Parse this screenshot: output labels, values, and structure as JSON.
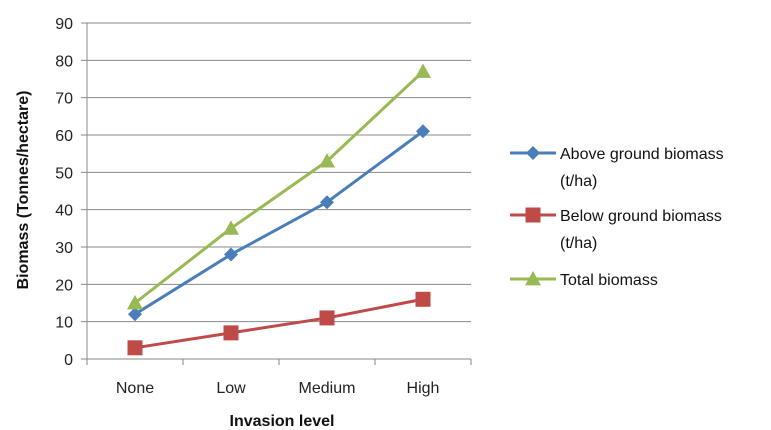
{
  "chart_data": {
    "type": "line",
    "title": "",
    "xlabel": "Invasion level",
    "ylabel": "Biomass (Tonnes/hectare)",
    "categories": [
      "None",
      "Low",
      "Medium",
      "High"
    ],
    "ylim": [
      0,
      90
    ],
    "yticks": [
      0,
      10,
      20,
      30,
      40,
      50,
      60,
      70,
      80,
      90
    ],
    "grid": true,
    "legend_position": "right",
    "series": [
      {
        "name": "Above ground biomass (t/ha)",
        "name_lines": [
          "Above ground biomass",
          "(t/ha)"
        ],
        "values": [
          12,
          28,
          42,
          61
        ],
        "color": "#4a7ebb",
        "marker": "diamond"
      },
      {
        "name": "Below ground biomass (t/ha)",
        "name_lines": [
          "Below ground biomass",
          "(t/ha)"
        ],
        "values": [
          3,
          7,
          11,
          16
        ],
        "color": "#be4b48",
        "marker": "square"
      },
      {
        "name": "Total biomass",
        "name_lines": [
          "Total biomass"
        ],
        "values": [
          15,
          35,
          53,
          77
        ],
        "color": "#98b954",
        "marker": "triangle"
      }
    ]
  }
}
